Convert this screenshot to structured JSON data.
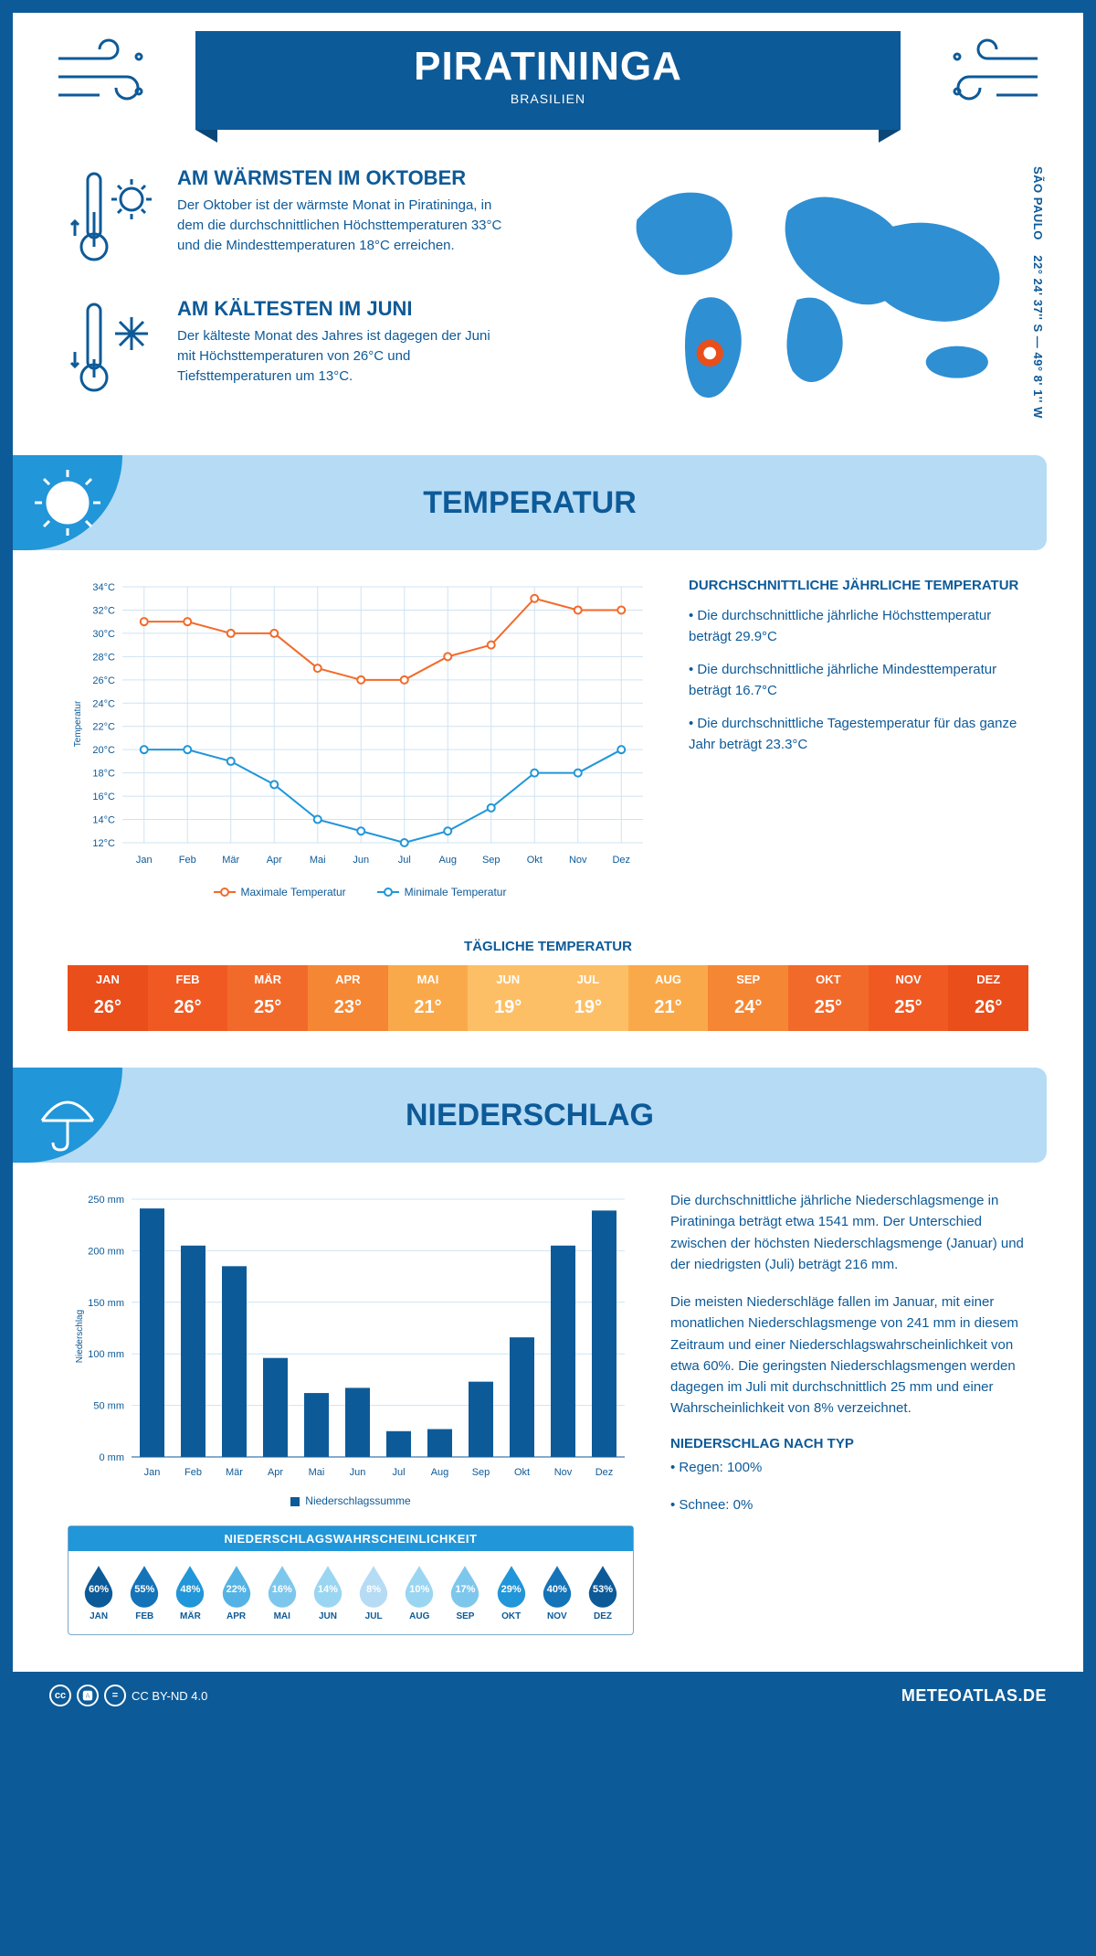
{
  "header": {
    "city": "PIRATININGA",
    "country": "BRASILIEN"
  },
  "overview": {
    "warmest": {
      "title": "AM WÄRMSTEN IM OKTOBER",
      "text": "Der Oktober ist der wärmste Monat in Piratininga, in dem die durchschnittlichen Höchsttemperaturen 33°C und die Mindesttemperaturen 18°C erreichen."
    },
    "coldest": {
      "title": "AM KÄLTESTEN IM JUNI",
      "text": "Der kälteste Monat des Jahres ist dagegen der Juni mit Höchsttemperaturen von 26°C und Tiefsttemperaturen um 13°C."
    },
    "region": "SÃO PAULO",
    "coords": "22° 24' 37'' S — 49° 8' 1'' W"
  },
  "sections": {
    "temperature_title": "TEMPERATUR",
    "precipitation_title": "NIEDERSCHLAG"
  },
  "months_short": [
    "Jan",
    "Feb",
    "Mär",
    "Apr",
    "Mai",
    "Jun",
    "Jul",
    "Aug",
    "Sep",
    "Okt",
    "Nov",
    "Dez"
  ],
  "months_short_upper": [
    "JAN",
    "FEB",
    "MÄR",
    "APR",
    "MAI",
    "JUN",
    "JUL",
    "AUG",
    "SEP",
    "OKT",
    "NOV",
    "DEZ"
  ],
  "temp_chart": {
    "type": "line",
    "y_axis_label": "Temperatur",
    "y_min": 12,
    "y_max": 34,
    "y_step": 2,
    "y_unit": "°C",
    "grid_color": "#cfe3f2",
    "series": {
      "max": {
        "label": "Maximale Temperatur",
        "color": "#f26a2a",
        "values": [
          31,
          31,
          30,
          30,
          27,
          26,
          26,
          28,
          29,
          33,
          32,
          32
        ]
      },
      "min": {
        "label": "Minimale Temperatur",
        "color": "#2196d8",
        "values": [
          20,
          20,
          19,
          17,
          14,
          13,
          12,
          13,
          15,
          18,
          18,
          20
        ]
      }
    }
  },
  "temp_info": {
    "title": "DURCHSCHNITTLICHE JÄHRLICHE TEMPERATUR",
    "points": [
      "• Die durchschnittliche jährliche Höchsttemperatur beträgt 29.9°C",
      "• Die durchschnittliche jährliche Mindesttemperatur beträgt 16.7°C",
      "• Die durchschnittliche Tagestemperatur für das ganze Jahr beträgt 23.3°C"
    ]
  },
  "daily_temp": {
    "title": "TÄGLICHE TEMPERATUR",
    "values": [
      26,
      26,
      25,
      23,
      21,
      19,
      19,
      21,
      24,
      25,
      25,
      26
    ],
    "colors": [
      "#e94e1b",
      "#f05a22",
      "#f26a2a",
      "#f58634",
      "#faa94a",
      "#fdbf66",
      "#fdbf66",
      "#faa94a",
      "#f58634",
      "#f26a2a",
      "#f05a22",
      "#e94e1b"
    ]
  },
  "precip_chart": {
    "type": "bar",
    "y_axis_label": "Niederschlag",
    "y_max": 250,
    "y_step": 50,
    "y_unit": " mm",
    "bar_color": "#0d5a98",
    "grid_color": "#cfe3f2",
    "legend": "Niederschlagssumme",
    "values": [
      241,
      205,
      185,
      96,
      62,
      67,
      25,
      27,
      73,
      116,
      205,
      239
    ]
  },
  "precip_text": {
    "p1": "Die durchschnittliche jährliche Niederschlagsmenge in Piratininga beträgt etwa 1541 mm. Der Unterschied zwischen der höchsten Niederschlagsmenge (Januar) und der niedrigsten (Juli) beträgt 216 mm.",
    "p2": "Die meisten Niederschläge fallen im Januar, mit einer monatlichen Niederschlagsmenge von 241 mm in diesem Zeitraum und einer Niederschlagswahrscheinlichkeit von etwa 60%. Die geringsten Niederschlagsmengen werden dagegen im Juli mit durchschnittlich 25 mm und einer Wahrscheinlichkeit von 8% verzeichnet.",
    "type_title": "NIEDERSCHLAG NACH TYP",
    "type_points": [
      "• Regen: 100%",
      "• Schnee: 0%"
    ]
  },
  "precip_prob": {
    "title": "NIEDERSCHLAGSWAHRSCHEINLICHKEIT",
    "values": [
      60,
      55,
      48,
      22,
      16,
      14,
      8,
      10,
      17,
      29,
      40,
      53
    ],
    "colors": [
      "#0d5a98",
      "#1573b8",
      "#2196d8",
      "#54b3e4",
      "#7ec7ec",
      "#9ad6f2",
      "#b6dbf5",
      "#9ad6f2",
      "#7ec7ec",
      "#2196d8",
      "#1573b8",
      "#0d5a98"
    ]
  },
  "footer": {
    "license": "CC BY-ND 4.0",
    "site": "METEOATLAS.DE"
  }
}
